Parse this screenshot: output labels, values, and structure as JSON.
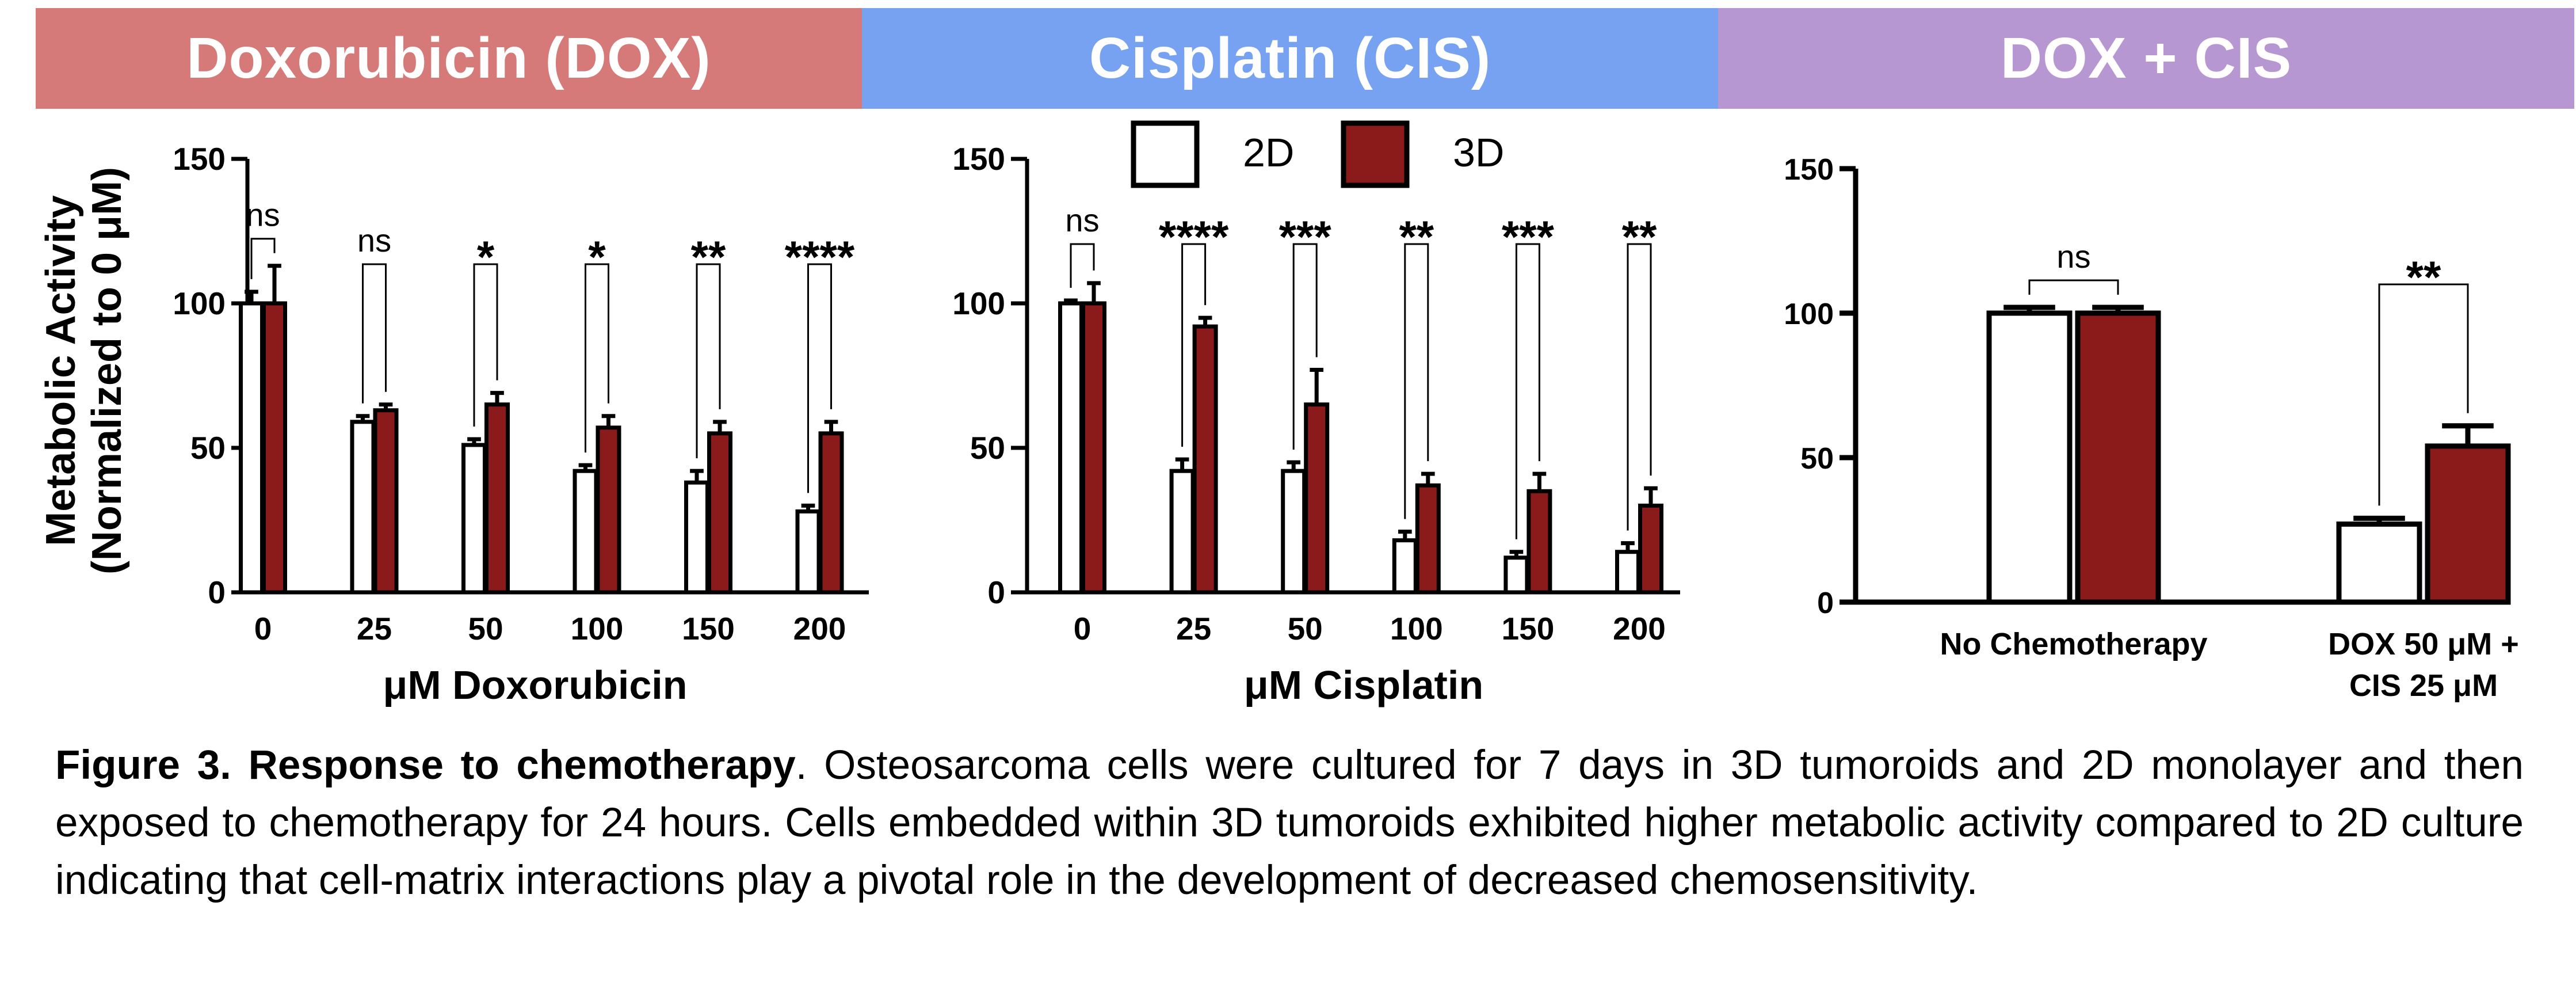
{
  "headers": {
    "dox": {
      "label": "Doxorubicin (DOX)",
      "color": "#D57A78"
    },
    "cis": {
      "label": "Cisplatin (CIS)",
      "color": "#76A2F1"
    },
    "combo": {
      "label": "DOX + CIS",
      "color": "#B797D2"
    }
  },
  "y_axis_label": [
    "Metabolic Activity",
    "(Normalized to 0 μM)"
  ],
  "legend": [
    {
      "name": "2D",
      "color": "#ffffff"
    },
    {
      "name": "3D",
      "color": "#8B1A1A"
    }
  ],
  "chart_data": [
    {
      "type": "bar",
      "xlabel": "μM Doxorubicin",
      "ylim": [
        0,
        150
      ],
      "yticks": [
        0,
        50,
        100,
        150
      ],
      "categories": [
        "0",
        "25",
        "50",
        "100",
        "150",
        "200"
      ],
      "series": [
        {
          "name": "2D",
          "values": [
            100,
            59,
            51,
            42,
            38,
            28
          ],
          "errors": [
            4,
            2,
            2,
            2,
            4,
            2
          ]
        },
        {
          "name": "3D",
          "values": [
            100,
            63,
            65,
            57,
            55,
            55
          ],
          "errors": [
            13,
            2,
            4,
            4,
            4,
            4
          ]
        }
      ],
      "significance": [
        "ns",
        "ns",
        "*",
        "*",
        "**",
        "****"
      ]
    },
    {
      "type": "bar",
      "xlabel": "μM Cisplatin",
      "ylim": [
        0,
        150
      ],
      "yticks": [
        0,
        50,
        100,
        150
      ],
      "categories": [
        "0",
        "25",
        "50",
        "100",
        "150",
        "200"
      ],
      "series": [
        {
          "name": "2D",
          "values": [
            100,
            42,
            42,
            18,
            12,
            14
          ],
          "errors": [
            1,
            4,
            3,
            3,
            2,
            3
          ]
        },
        {
          "name": "3D",
          "values": [
            100,
            92,
            65,
            37,
            35,
            30
          ],
          "errors": [
            7,
            3,
            12,
            4,
            6,
            6
          ]
        }
      ],
      "significance": [
        "ns",
        "****",
        "***",
        "**",
        "***",
        "**"
      ]
    },
    {
      "type": "bar",
      "xlabel": "",
      "ylim": [
        0,
        150
      ],
      "yticks": [
        0,
        50,
        100,
        150
      ],
      "categories": [
        [
          "No Chemotherapy"
        ],
        [
          "DOX 50 μM +",
          "CIS 25 μM"
        ]
      ],
      "series": [
        {
          "name": "2D",
          "values": [
            100,
            27
          ],
          "errors": [
            2,
            2
          ]
        },
        {
          "name": "3D",
          "values": [
            100,
            54
          ],
          "errors": [
            2,
            7
          ]
        }
      ],
      "significance": [
        "ns",
        "**"
      ]
    }
  ],
  "caption": {
    "bold": "Figure 3. Response to chemotherapy",
    "text": ". Osteosarcoma cells were cultured for 7 days in 3D tumoroids and 2D monolayer and then exposed to chemotherapy for 24 hours. Cells embedded within 3D tumoroids exhibited higher metabolic activity compared to 2D culture indicating that cell-matrix interactions play a pivotal role in the development of decreased chemosensitivity."
  }
}
